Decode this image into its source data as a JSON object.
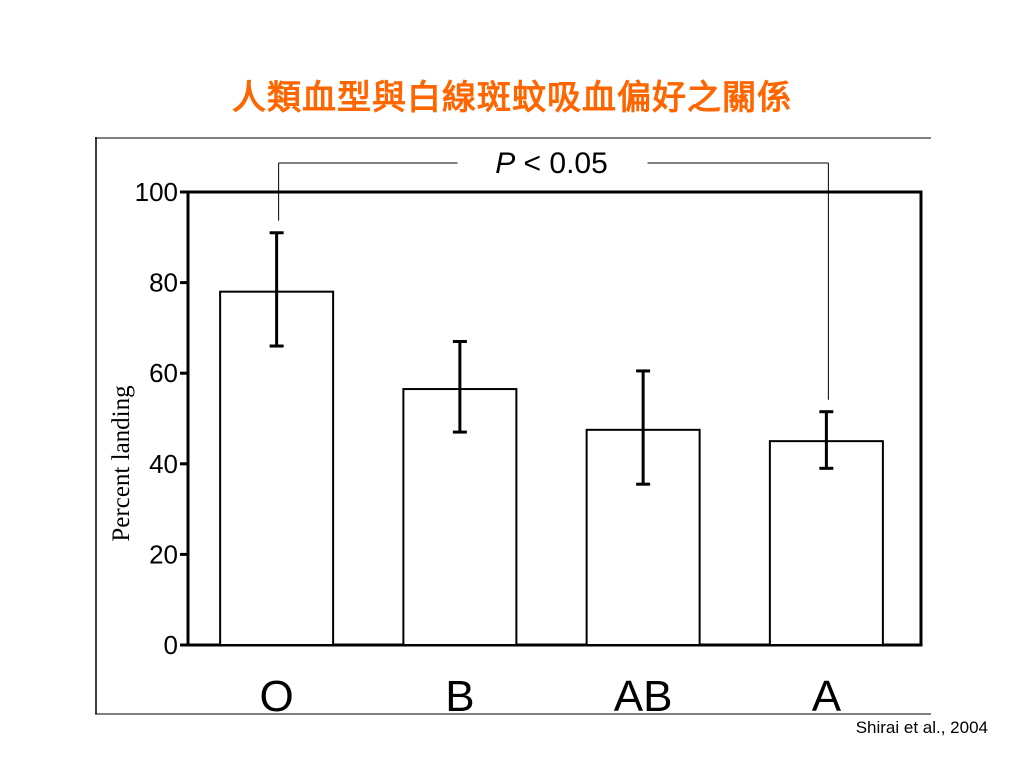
{
  "slide": {
    "title": "人類血型與白線斑蚊吸血偏好之關係",
    "title_color": "#ff6600",
    "citation": "Shirai et al., 2004"
  },
  "chart_data": {
    "type": "bar",
    "title": "",
    "xlabel": "",
    "ylabel": "Percent landing",
    "ylim": [
      0,
      100
    ],
    "yticks": [
      0,
      20,
      40,
      60,
      80,
      100
    ],
    "categories": [
      "O",
      "B",
      "AB",
      "A"
    ],
    "values": [
      78,
      56.5,
      47.5,
      45
    ],
    "error_low": [
      66,
      47,
      35.5,
      39
    ],
    "error_high": [
      91,
      67,
      60.5,
      51.5
    ],
    "significance": {
      "label_italic": "P",
      "label_rest": " < 0.05",
      "between": [
        "O",
        "A"
      ]
    },
    "bar_fill": "#ffffff",
    "bar_stroke": "#000000",
    "grid": false,
    "legend": "none"
  }
}
